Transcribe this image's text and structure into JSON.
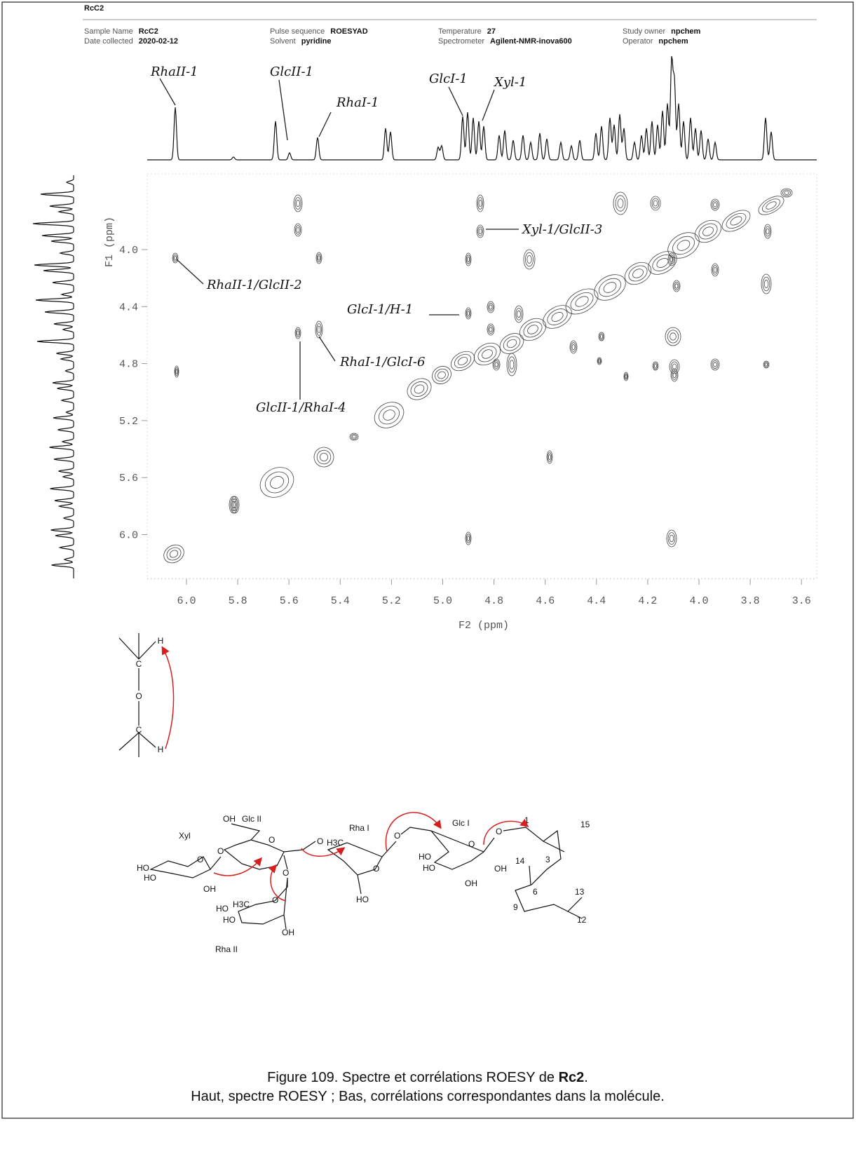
{
  "header": {
    "title": "RcC2",
    "fields": [
      {
        "label": "Sample Name",
        "value": "RcC2"
      },
      {
        "label": "Date collected",
        "value": "2020-02-12"
      },
      {
        "label": "Pulse sequence",
        "value": "ROESYAD"
      },
      {
        "label": "Solvent",
        "value": "pyridine"
      },
      {
        "label": "Temperature",
        "value": "27"
      },
      {
        "label": "Spectrometer",
        "value": "Agilent-NMR-inova600"
      },
      {
        "label": "Study owner",
        "value": "npchem"
      },
      {
        "label": "Operator",
        "value": "npchem"
      }
    ]
  },
  "spectrum": {
    "peak_labels": [
      "RhaII-1",
      "GlcII-1",
      "RhaI-1",
      "GlcI-1",
      "Xyl-1"
    ],
    "cross_peak_labels": [
      "Xyl-1/GlcII-3",
      "RhaII-1/GlcII-2",
      "GlcI-1/H-1",
      "RhaI-1/GlcI-6",
      "GlcII-1/RhaI-4"
    ],
    "x_axis": {
      "label": "F2 (ppm)",
      "ticks": [
        "6.0",
        "5.8",
        "5.6",
        "5.4",
        "5.2",
        "5.0",
        "4.8",
        "4.6",
        "4.4",
        "4.2",
        "4.0",
        "3.8",
        "3.6"
      ]
    },
    "y_axis": {
      "label": "F1 (ppm)",
      "ticks": [
        "4.0",
        "4.4",
        "4.8",
        "5.2",
        "5.6",
        "6.0"
      ]
    }
  },
  "scheme": {
    "labels": [
      "H",
      "C",
      "O",
      "C",
      "H"
    ]
  },
  "molecule": {
    "residues": [
      "Xyl",
      "Glc II",
      "Rha I",
      "Glc I",
      "Rha II"
    ],
    "labels": [
      "OH",
      "O",
      "O",
      "O",
      "H3C",
      "O",
      "O",
      "HO",
      "HO",
      "OH",
      "O",
      "H3C",
      "HO",
      "HO",
      "OH",
      "O",
      "O",
      "HO",
      "HO",
      "HO",
      "O",
      "OH",
      "OH",
      "O",
      "1",
      "15",
      "3",
      "14",
      "6",
      "13",
      "9",
      "12"
    ]
  },
  "caption": {
    "line1_prefix": "Figure 109. Spectre et corrélations ROESY de ",
    "line1_bold": "Rc2",
    "line1_suffix": ".",
    "line2": "Haut, spectre ROESY ; Bas, corrélations correspondantes dans la molécule."
  }
}
